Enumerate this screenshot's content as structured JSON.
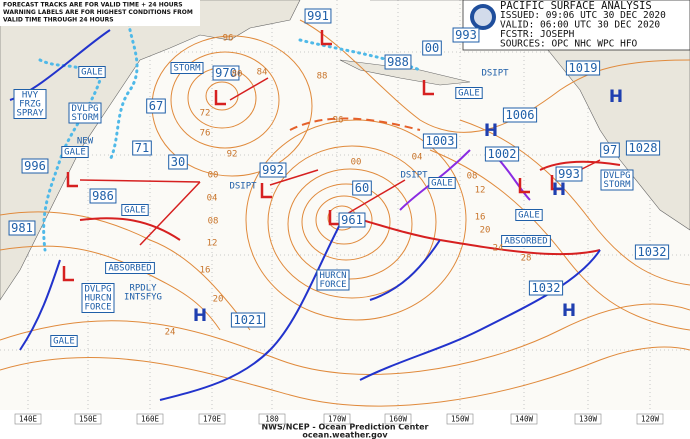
{
  "header": {
    "lines": [
      "PACIFIC SURFACE ANALYSIS",
      "ISSUED: 09:06 UTC 30 DEC 2020",
      "VALID: 06:00 UTC 30 DEC 2020",
      "FCSTR: JOSEPH",
      "SOURCES: OPC NHC WPC HFO"
    ]
  },
  "note": {
    "lines": [
      "FORECAST TRACKS ARE FOR VALID TIME + 24 HOURS",
      "WARNING LABELS ARE FOR HIGHEST CONDITIONS FROM",
      "VALID TIME THROUGH 24 HOURS"
    ]
  },
  "boxed_labels": [
    {
      "lines": [
        "GALE"
      ]
    },
    {
      "lines": [
        "STORM"
      ]
    },
    {
      "lines": [
        "HVY",
        "FRZG",
        "SPRAY"
      ]
    },
    {
      "lines": [
        "DVLPG",
        "STORM"
      ]
    },
    {
      "lines": [
        "GALE"
      ]
    },
    {
      "lines": [
        "GALE"
      ]
    },
    {
      "lines": [
        "ABSORBED"
      ]
    },
    {
      "lines": [
        "DVLPG",
        "HURCN",
        "FORCE"
      ]
    },
    {
      "lines": [
        "GALE"
      ]
    },
    {
      "lines": [
        "HURCN",
        "FORCE"
      ]
    },
    {
      "lines": [
        "GALE"
      ]
    },
    {
      "lines": [
        "GALE"
      ]
    },
    {
      "lines": [
        "GALE"
      ]
    },
    {
      "lines": [
        "ABSORBED"
      ]
    },
    {
      "lines": [
        "DVLPG",
        "STORM"
      ]
    }
  ],
  "pressure_labels": [
    "991",
    "993",
    "00",
    "988",
    "970",
    "67",
    "71",
    "30",
    "992",
    "996",
    "986",
    "981",
    "60",
    "961",
    "1003",
    "1002",
    "1006",
    "1019",
    "97",
    "1028",
    "993",
    "1032",
    "1032",
    "1021"
  ],
  "plain_labels": [
    {
      "lines": [
        "NEW"
      ]
    },
    {
      "lines": [
        "DSIPT"
      ]
    },
    {
      "lines": [
        "DSIPT"
      ]
    },
    {
      "lines": [
        "DSIPT"
      ]
    },
    {
      "lines": [
        "RPDLY",
        "INTSFYG"
      ]
    }
  ],
  "highs": [
    "H",
    "H",
    "H",
    "H",
    "H"
  ],
  "isobar_labels": [
    "96",
    "80",
    "84",
    "88",
    "72",
    "76",
    "92",
    "00",
    "04",
    "08",
    "12",
    "16",
    "20",
    "24",
    "96",
    "00",
    "04",
    "08",
    "12",
    "16",
    "20",
    "24",
    "28"
  ],
  "longitudes": [
    "140E",
    "150E",
    "160E",
    "170E",
    "180",
    "170W",
    "160W",
    "150W",
    "140W",
    "130W",
    "120W"
  ],
  "footer": {
    "lines": [
      "NWS/NCEP - Ocean Prediction Center",
      "ocean.weather.gov"
    ]
  }
}
